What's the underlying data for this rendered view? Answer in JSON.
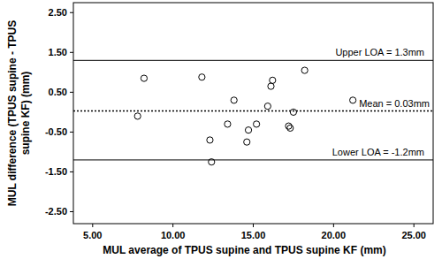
{
  "chart_data": {
    "type": "scatter",
    "x_label": "MUL average of TPUS supine and TPUS supine KF (mm)",
    "y_label": [
      "MUL difference (TPUS supine - TPUS",
      "supine KF) (mm)"
    ],
    "x": [
      7.8,
      8.2,
      11.8,
      12.4,
      12.3,
      13.4,
      13.8,
      14.7,
      14.6,
      15.2,
      15.9,
      16.1,
      16.2,
      17.2,
      17.3,
      17.5,
      18.2,
      21.2
    ],
    "values": [
      -0.1,
      0.85,
      0.88,
      -1.25,
      -0.7,
      -0.3,
      0.3,
      -0.45,
      -0.75,
      -0.3,
      0.15,
      0.65,
      0.8,
      -0.35,
      -0.4,
      0.0,
      1.05,
      0.3
    ],
    "marker": "circle",
    "color": "#000000",
    "xlim": [
      3.8,
      26.2
    ],
    "ylim": [
      -2.8,
      2.75
    ],
    "xticks": [
      {
        "value": 5,
        "label": "5.00"
      },
      {
        "value": 10,
        "label": "10.00"
      },
      {
        "value": 15,
        "label": "15.00"
      },
      {
        "value": 20,
        "label": "20.00"
      },
      {
        "value": 25,
        "label": "25.00"
      }
    ],
    "yticks": [
      {
        "value": -2.5,
        "label": "-2.50"
      },
      {
        "value": -1.5,
        "label": "-1.50"
      },
      {
        "value": -0.5,
        "label": "-0.50"
      },
      {
        "value": 0.5,
        "label": "0.50"
      },
      {
        "value": 1.5,
        "label": "1.50"
      },
      {
        "value": 2.5,
        "label": "2.50"
      }
    ],
    "lines": [
      {
        "value": 1.3,
        "label": "Upper LOA = 1.3mm",
        "line_style": "solid"
      },
      {
        "value": 0.03,
        "label": "Mean = 0.03mm",
        "line_style": "dotted"
      },
      {
        "value": -1.2,
        "label": "Lower LOA = -1.2mm",
        "line_style": "solid"
      }
    ]
  }
}
